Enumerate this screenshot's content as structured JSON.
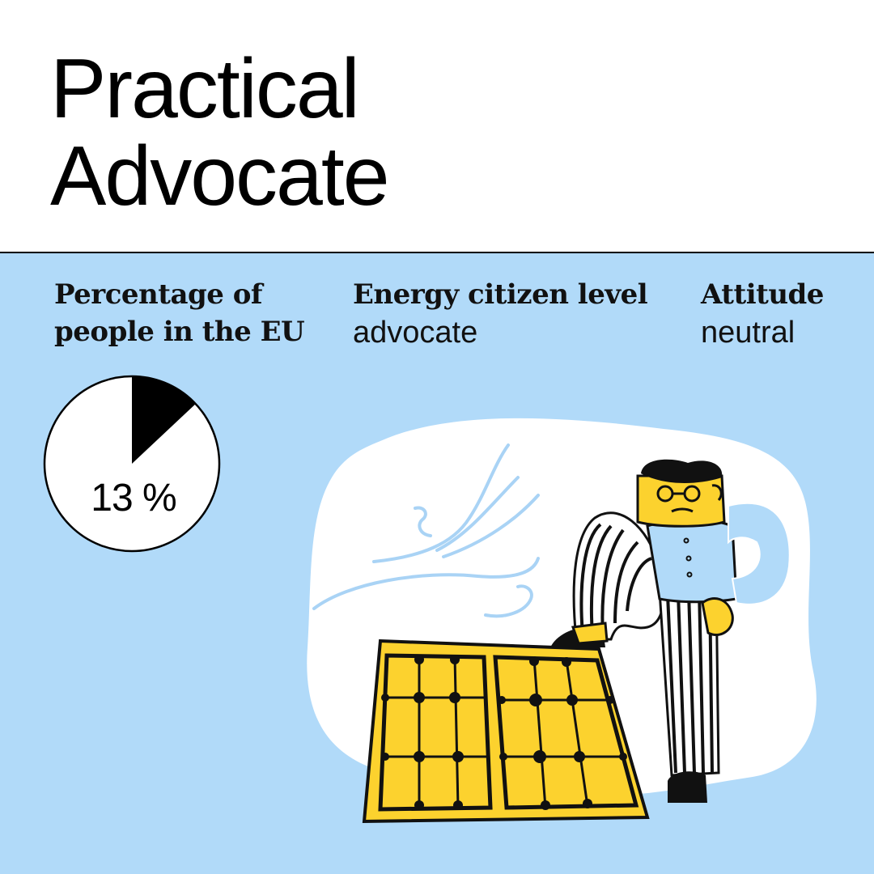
{
  "header": {
    "title_line1": "Practical",
    "title_line2": "Advocate"
  },
  "stats": {
    "percentage_label_line1": "Percentage of",
    "percentage_label_line2": "people in the EU",
    "percentage_value": "13 %",
    "percentage_fraction": 0.13,
    "level_label": "Energy citizen level",
    "level_value": "advocate",
    "attitude_label": "Attitude",
    "attitude_value": "neutral"
  },
  "colors": {
    "panel_background": "#b1daf9",
    "accent_yellow": "#fcd22e",
    "ink": "#000000",
    "header_background": "#ffffff"
  },
  "illustration": {
    "subject": "person-standing-with-foot-on-solar-panel-icon",
    "elements": [
      "solar-panel-icon",
      "wind-gust-icon",
      "person-icon"
    ]
  }
}
